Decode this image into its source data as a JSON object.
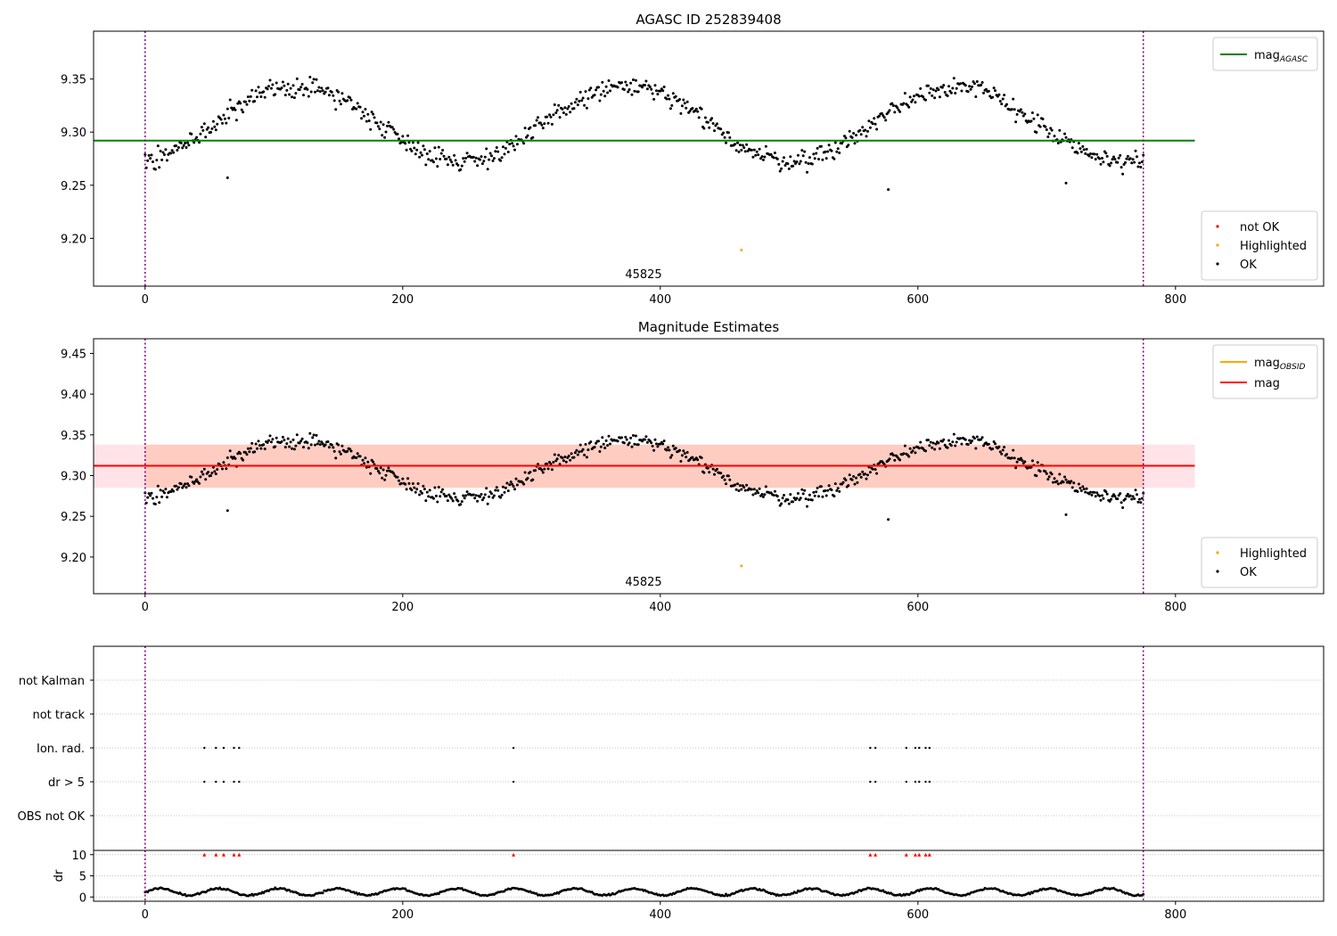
{
  "chart_data": [
    {
      "type": "scatter",
      "title": "AGASC ID 252839408",
      "xlim": [
        -40,
        915
      ],
      "ylim": [
        9.155,
        9.395
      ],
      "xticks": [
        0,
        200,
        400,
        600,
        800
      ],
      "yticks": [
        9.2,
        9.25,
        9.3,
        9.35
      ],
      "grid": false,
      "annotations": [
        {
          "text": "45825",
          "x": 387,
          "y_position": "bottom"
        }
      ],
      "vlines": [
        0,
        775
      ],
      "hlines": [
        {
          "name": "mag",
          "subscript": "AGASC",
          "y": 9.292,
          "x_range": [
            -40,
            815
          ],
          "color": "#008000"
        }
      ],
      "legend_lines": {
        "placement": "top-right"
      },
      "legend_points": {
        "placement": "bottom-right",
        "entries": [
          {
            "name": "not OK",
            "color": "#ff0000"
          },
          {
            "name": "Highlighted",
            "color": "#ffa500"
          },
          {
            "name": "OK",
            "color": "#000000"
          }
        ]
      },
      "series": [
        {
          "name": "OK",
          "color": "#000000",
          "model": {
            "base": 9.308,
            "amp": 0.035,
            "period": 255,
            "phase": 55,
            "noise": 0.012,
            "x_range": [
              0,
              775
            ],
            "step": 1
          }
        },
        {
          "name": "Highlighted",
          "color": "#ffa500",
          "points": [
            [
              463,
              9.189
            ]
          ]
        },
        {
          "name": "OK-outliers",
          "color": "#000000",
          "points": [
            [
              64,
              9.257
            ],
            [
              577,
              9.246
            ],
            [
              715,
              9.252
            ]
          ]
        }
      ]
    },
    {
      "type": "scatter",
      "title": "Magnitude Estimates",
      "xlim": [
        -40,
        915
      ],
      "ylim": [
        9.155,
        9.468
      ],
      "xticks": [
        0,
        200,
        400,
        600,
        800
      ],
      "yticks": [
        9.2,
        9.25,
        9.3,
        9.35,
        9.4,
        9.45
      ],
      "grid": false,
      "annotations": [
        {
          "text": "45825",
          "x": 387,
          "y_position": "bottom"
        }
      ],
      "vlines": [
        0,
        775
      ],
      "bands": [
        {
          "y_range": [
            9.285,
            9.338
          ],
          "x_range": [
            -40,
            815
          ],
          "color": "#ffc0cb",
          "opacity": 0.45
        },
        {
          "y_range": [
            9.285,
            9.338
          ],
          "x_range": [
            0,
            775
          ],
          "color": "#ffa07a",
          "opacity": 0.35
        }
      ],
      "hlines": [
        {
          "name": "mag",
          "subscript": "OBSID",
          "y": 9.312,
          "x_range": [
            0,
            775
          ],
          "color": "#ffa500"
        },
        {
          "name": "mag",
          "subscript": "",
          "y": 9.312,
          "x_range": [
            -40,
            815
          ],
          "color": "#ff0000"
        }
      ],
      "legend_lines": {
        "placement": "top-right"
      },
      "legend_points": {
        "placement": "bottom-right",
        "entries": [
          {
            "name": "Highlighted",
            "color": "#ffa500"
          },
          {
            "name": "OK",
            "color": "#000000"
          }
        ]
      },
      "series": [
        {
          "name": "OK",
          "color": "#000000",
          "model": {
            "base": 9.308,
            "amp": 0.035,
            "period": 255,
            "phase": 55,
            "noise": 0.012,
            "x_range": [
              0,
              775
            ],
            "step": 1
          }
        },
        {
          "name": "Highlighted",
          "color": "#ffa500",
          "points": [
            [
              463,
              9.189
            ]
          ]
        },
        {
          "name": "OK-outliers",
          "color": "#000000",
          "points": [
            [
              64,
              9.257
            ],
            [
              577,
              9.246
            ],
            [
              715,
              9.252
            ]
          ]
        }
      ]
    },
    {
      "type": "scatter",
      "title": "",
      "xlim": [
        -40,
        915
      ],
      "categories": [
        "not Kalman",
        "not track",
        "Ion. rad.",
        "dr > 5",
        "OBS not OK"
      ],
      "grid": true,
      "vlines": [
        0,
        775
      ],
      "series": [
        {
          "name": "Ion. rad.",
          "color": "#000000",
          "x": [
            46,
            55,
            61,
            69,
            73,
            286,
            563,
            567,
            591,
            598,
            601,
            606,
            609
          ]
        },
        {
          "name": "dr > 5",
          "color": "#000000",
          "x": [
            46,
            55,
            61,
            69,
            73,
            286,
            563,
            567,
            591,
            598,
            601,
            606,
            609
          ]
        }
      ]
    },
    {
      "type": "scatter",
      "title": "",
      "xlim": [
        -40,
        915
      ],
      "ylim": [
        -1,
        11
      ],
      "ylabel": "dr",
      "xticks": [
        0,
        200,
        400,
        600,
        800
      ],
      "yticks": [
        0,
        5,
        10
      ],
      "grid": true,
      "vlines": [
        0,
        775
      ],
      "series": [
        {
          "name": "dr",
          "color": "#000000",
          "model": {
            "base": 1.2,
            "amp": 0.8,
            "period": 46,
            "noise": 0.25,
            "x_range": [
              0,
              775
            ],
            "step": 1
          }
        },
        {
          "name": "dr-high",
          "color": "#ff0000",
          "marker": "triangle",
          "y": 10,
          "x": [
            46,
            55,
            61,
            69,
            73,
            286,
            563,
            567,
            591,
            598,
            601,
            606,
            609
          ]
        }
      ]
    }
  ]
}
